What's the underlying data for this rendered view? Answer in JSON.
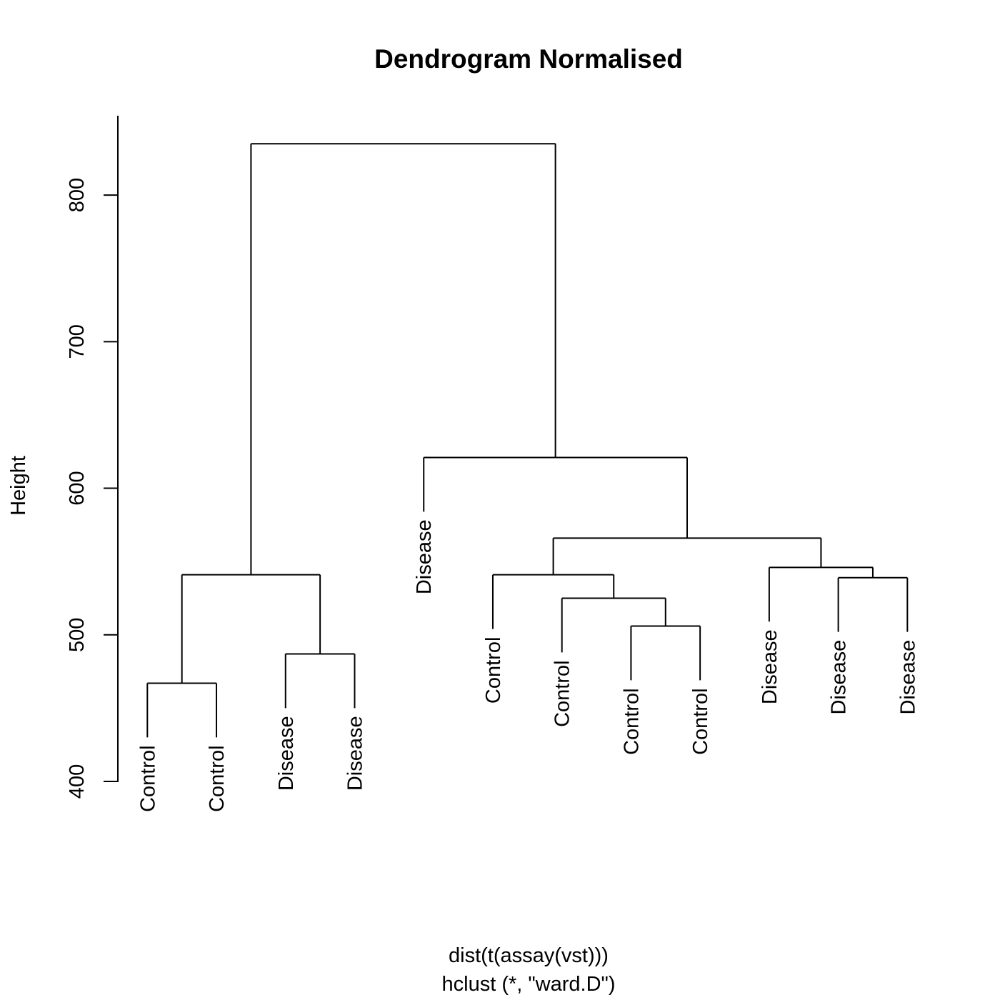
{
  "chart_data": {
    "type": "dendrogram",
    "title": "Dendrogram Normalised",
    "ylabel": "Height",
    "xlabel": "dist(t(assay(vst)))",
    "sub": "hclust (*, \"ward.D\")",
    "ylim": [
      400,
      850
    ],
    "y_ticks": [
      400,
      500,
      600,
      700,
      800
    ],
    "hang": 37,
    "leaves": [
      "Control",
      "Control",
      "Disease",
      "Disease",
      "Disease",
      "Control",
      "Control",
      "Control",
      "Control",
      "Disease",
      "Disease",
      "Disease"
    ],
    "merges": [
      {
        "left": 0,
        "right": 1,
        "height": 467
      },
      {
        "left": 2,
        "right": 3,
        "height": 487
      },
      {
        "left": "m0",
        "right": "m1",
        "height": 541
      },
      {
        "left": 7,
        "right": 8,
        "height": 506
      },
      {
        "left": 6,
        "right": "m3",
        "height": 525
      },
      {
        "left": 5,
        "right": "m4",
        "height": 541
      },
      {
        "left": 10,
        "right": 11,
        "height": 539
      },
      {
        "left": 9,
        "right": "m6",
        "height": 546
      },
      {
        "left": "m5",
        "right": "m7",
        "height": 566
      },
      {
        "left": 4,
        "right": "m8",
        "height": 621
      },
      {
        "left": "m2",
        "right": "m9",
        "height": 835
      }
    ]
  }
}
